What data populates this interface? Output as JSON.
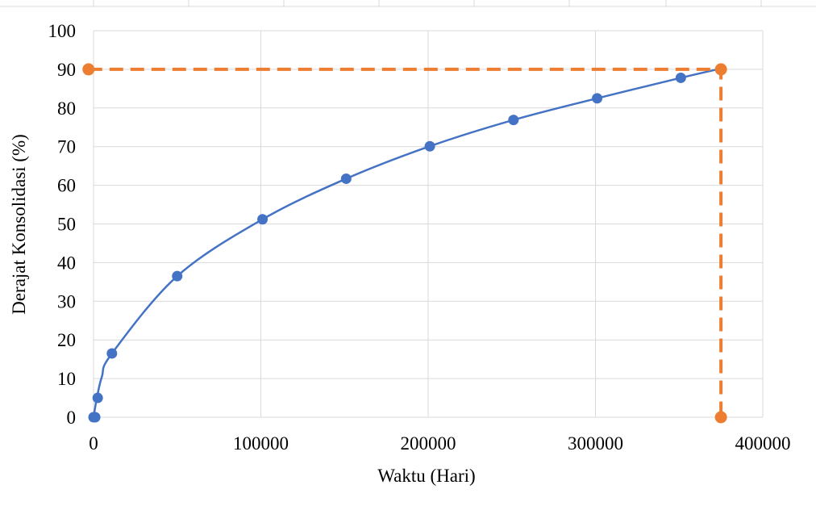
{
  "chart_data": {
    "type": "scatter",
    "title": "",
    "xlabel": "Waktu (Hari)",
    "ylabel": "Derajat Konsolidasi (%)",
    "xlim": [
      0,
      400000
    ],
    "ylim": [
      0,
      100
    ],
    "x_ticks": [
      "0",
      "100000",
      "200000",
      "300000",
      "400000"
    ],
    "y_ticks": [
      "0",
      "10",
      "20",
      "30",
      "40",
      "50",
      "60",
      "70",
      "80",
      "90",
      "100"
    ],
    "grid": true,
    "legend": "none",
    "series": [
      {
        "color": "#4472C4",
        "marker": "circle",
        "points": [
          {
            "x": 0,
            "y": 0
          },
          {
            "x": 1000,
            "y": 0
          },
          {
            "x": 2500,
            "y": 5
          },
          {
            "x": 11000,
            "y": 16.5
          },
          {
            "x": 50000,
            "y": 36.5
          },
          {
            "x": 101000,
            "y": 51.2
          },
          {
            "x": 151000,
            "y": 61.7
          },
          {
            "x": 201000,
            "y": 70.1
          },
          {
            "x": 251000,
            "y": 76.9
          },
          {
            "x": 301000,
            "y": 82.5
          },
          {
            "x": 351000,
            "y": 87.8
          }
        ],
        "trendline": {
          "type": "power",
          "points": [
            [
              0,
              0
            ],
            [
              2000,
              5
            ],
            [
              5000,
              10.5
            ],
            [
              11000,
              16.5
            ],
            [
              50000,
              36.5
            ],
            [
              101000,
              51.2
            ],
            [
              151000,
              61.7
            ],
            [
              201000,
              70.1
            ],
            [
              251000,
              76.9
            ],
            [
              301000,
              82.5
            ],
            [
              351000,
              87.8
            ],
            [
              375000,
              90.2
            ]
          ]
        }
      },
      {
        "color": "#ED7D31",
        "marker": "circle",
        "line": "dashed",
        "points": [
          {
            "x": -3000,
            "y": 90
          },
          {
            "x": 375000,
            "y": 90
          },
          {
            "x": 375000,
            "y": 0
          }
        ]
      }
    ]
  }
}
